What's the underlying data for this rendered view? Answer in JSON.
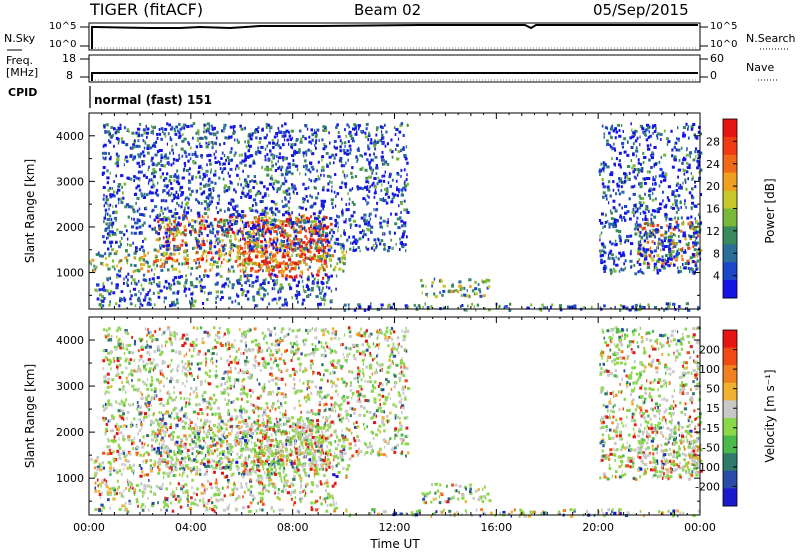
{
  "header": {
    "radar": "TIGER (fitACF)",
    "beam": "Beam 02",
    "date": "05/Sep/2015"
  },
  "nsky": {
    "label": "N.Sky",
    "ticks": [
      "10^5",
      "10^0"
    ]
  },
  "nsearch": {
    "label": "N.Search",
    "ticks": [
      "10^5",
      "10^0"
    ]
  },
  "freq": {
    "label_1": "Freq.",
    "label_2": "[MHz]",
    "ticks": [
      "18",
      "8"
    ]
  },
  "nave": {
    "label": "Nave",
    "ticks": [
      "60",
      "0"
    ]
  },
  "cpid": {
    "label": "CPID",
    "value": "normal (fast) 151"
  },
  "chart_data": [
    {
      "type": "heatmap",
      "name": "power-panel",
      "ylabel": "Slant Range [km]",
      "ylim": [
        200,
        4500
      ],
      "yticks": [
        "1000",
        "2000",
        "3000",
        "4000"
      ],
      "xticks": [
        "00:00",
        "04:00",
        "08:00",
        "12:00",
        "16:00",
        "20:00",
        "00:00"
      ],
      "xlim_hours": [
        0,
        24
      ],
      "colorbar": {
        "label": "Power [dB]",
        "ticks": [
          "4",
          "8",
          "12",
          "16",
          "20",
          "24",
          "28"
        ],
        "colors": [
          "#1414e6",
          "#1e46c8",
          "#2a6e9a",
          "#3a8a5c",
          "#7ab83a",
          "#c8c82a",
          "#f0a020",
          "#f06a1a",
          "#f03a14",
          "#e61414"
        ]
      },
      "regions": [
        {
          "t0": 0.0,
          "t1": 10.2,
          "r0": 1050,
          "r1": 1500,
          "level": 0.45
        },
        {
          "t0": 2.5,
          "t1": 9.5,
          "r0": 1200,
          "r1": 2300,
          "level": 0.75
        },
        {
          "t0": 6.0,
          "t1": 9.3,
          "r0": 900,
          "r1": 2200,
          "level": 0.85
        },
        {
          "t0": 0.2,
          "t1": 9.7,
          "r0": 300,
          "r1": 1000,
          "level": 0.2
        },
        {
          "t0": 0.5,
          "t1": 12.5,
          "r0": 1500,
          "r1": 4300,
          "level": 0.15
        },
        {
          "t0": 13.0,
          "t1": 15.7,
          "r0": 500,
          "r1": 900,
          "level": 0.4
        },
        {
          "t0": 10.0,
          "t1": 24.0,
          "r0": 200,
          "r1": 350,
          "level": 0.2
        },
        {
          "t0": 21.5,
          "t1": 24.0,
          "r0": 1200,
          "r1": 2200,
          "level": 0.6
        },
        {
          "t0": 20.0,
          "t1": 24.0,
          "r0": 1000,
          "r1": 4300,
          "level": 0.15
        }
      ]
    },
    {
      "type": "heatmap",
      "name": "velocity-panel",
      "ylabel": "Slant Range [km]",
      "xlabel": "Time UT",
      "ylim": [
        200,
        4500
      ],
      "yticks": [
        "1000",
        "2000",
        "3000",
        "4000"
      ],
      "xticks": [
        "00:00",
        "04:00",
        "08:00",
        "12:00",
        "16:00",
        "20:00",
        "00:00"
      ],
      "xlim_hours": [
        0,
        24
      ],
      "colorbar": {
        "label": "Velocity [m s⁻¹]",
        "ticks": [
          "200",
          "100",
          "50",
          "15",
          "-15",
          "-50",
          "-100",
          "-200"
        ],
        "colors": [
          "#1a1acc",
          "#2a4aa8",
          "#2f7a6a",
          "#4ab84a",
          "#8ad84a",
          "#c8c8c8",
          "#f0b030",
          "#f08020",
          "#f04a14",
          "#e61414"
        ]
      },
      "regions": [
        {
          "t0": 0.0,
          "t1": 10.2,
          "r0": 1050,
          "r1": 1500,
          "level": 0.5
        },
        {
          "t0": 2.5,
          "t1": 9.5,
          "r0": 1200,
          "r1": 2300,
          "level": 0.5
        },
        {
          "t0": 6.0,
          "t1": 9.3,
          "r0": 900,
          "r1": 2200,
          "level": 0.7
        },
        {
          "t0": 0.2,
          "t1": 9.7,
          "r0": 300,
          "r1": 1000,
          "level": 0.6
        },
        {
          "t0": 0.5,
          "t1": 12.5,
          "r0": 1500,
          "r1": 4300,
          "level": 0.6
        },
        {
          "t0": 13.0,
          "t1": 15.7,
          "r0": 500,
          "r1": 900,
          "level": 0.5
        },
        {
          "t0": 10.0,
          "t1": 24.0,
          "r0": 200,
          "r1": 350,
          "level": 0.3
        },
        {
          "t0": 21.5,
          "t1": 24.0,
          "r0": 1200,
          "r1": 2200,
          "level": 0.5
        },
        {
          "t0": 20.0,
          "t1": 24.0,
          "r0": 1000,
          "r1": 4300,
          "level": 0.6
        }
      ]
    }
  ]
}
